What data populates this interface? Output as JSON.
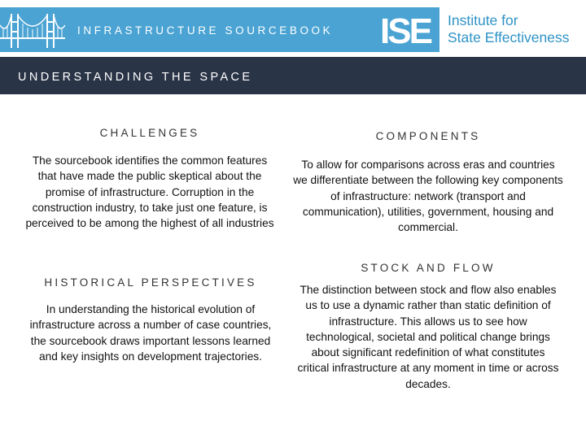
{
  "header": {
    "sourcebook_title": "INFRASTRUCTURE SOURCEBOOK",
    "logo_text": "ISE",
    "institute_line1": "Institute for",
    "institute_line2": "State Effectiveness",
    "header_color": "#4aa3d3",
    "institute_color": "#2f93c6"
  },
  "section": {
    "title": "UNDERSTANDING THE SPACE",
    "bar_color": "#2a3447"
  },
  "panels": {
    "challenges": {
      "heading": "CHALLENGES",
      "body": "The sourcebook identifies the common features that have made the public skeptical about the promise of infrastructure. Corruption in the construction industry, to take just one feature, is perceived to be among the highest of all industries"
    },
    "components": {
      "heading": "COMPONENTS",
      "body": "To allow for comparisons across eras and countries we differentiate between the following key components of infrastructure: network (transport and communication), utilities, government, housing and commercial."
    },
    "historical": {
      "heading": "HISTORICAL PERSPECTIVES",
      "body": "In understanding the historical evolution of infrastructure across a number of case countries, the sourcebook draws important lessons learned and key insights on development trajectories."
    },
    "stock_flow": {
      "heading": "STOCK AND FLOW",
      "body": "The distinction between stock and flow also enables us to use a dynamic rather than static definition of infrastructure. This allows us to see how technological, societal and political change brings about significant redefinition of what constitutes critical infrastructure at any moment in time or across decades."
    }
  }
}
